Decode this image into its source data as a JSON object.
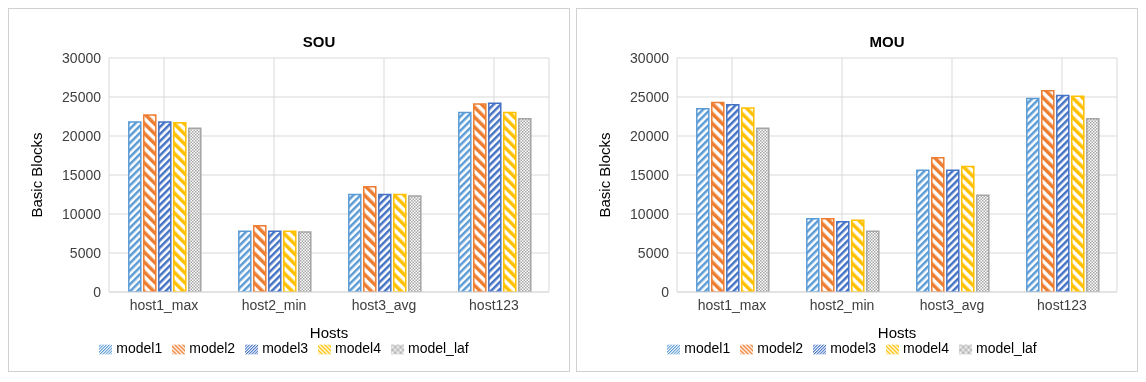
{
  "chart_data": [
    {
      "type": "bar",
      "title": "SOU",
      "xlabel": "Hosts",
      "ylabel": "Basic Blocks",
      "categories": [
        "host1_max",
        "host2_min",
        "host3_avg",
        "host123"
      ],
      "series": [
        {
          "name": "model1",
          "color": "#5b9bd5",
          "values": [
            21800,
            7800,
            12500,
            23000
          ]
        },
        {
          "name": "model2",
          "color": "#ed7d31",
          "values": [
            22700,
            8500,
            13500,
            24100
          ]
        },
        {
          "name": "model3",
          "color": "#4472c4",
          "values": [
            21800,
            7800,
            12500,
            24200
          ]
        },
        {
          "name": "model4",
          "color": "#ffc000",
          "values": [
            21700,
            7800,
            12500,
            23000
          ]
        },
        {
          "name": "model_laf",
          "color": "#a5a5a5",
          "values": [
            21000,
            7700,
            12300,
            22200
          ]
        }
      ],
      "ylim": [
        0,
        30000
      ],
      "yticks": [
        0,
        5000,
        10000,
        15000,
        20000,
        25000,
        30000
      ],
      "grid": true,
      "legend": "bottom"
    },
    {
      "type": "bar",
      "title": "MOU",
      "xlabel": "Hosts",
      "ylabel": "Basic Blocks",
      "categories": [
        "host1_max",
        "host2_min",
        "host3_avg",
        "host123"
      ],
      "series": [
        {
          "name": "model1",
          "color": "#5b9bd5",
          "values": [
            23500,
            9400,
            15600,
            24800
          ]
        },
        {
          "name": "model2",
          "color": "#ed7d31",
          "values": [
            24300,
            9400,
            17200,
            25800
          ]
        },
        {
          "name": "model3",
          "color": "#4472c4",
          "values": [
            24000,
            9000,
            15600,
            25200
          ]
        },
        {
          "name": "model4",
          "color": "#ffc000",
          "values": [
            23600,
            9200,
            16100,
            25100
          ]
        },
        {
          "name": "model_laf",
          "color": "#a5a5a5",
          "values": [
            21000,
            7800,
            12400,
            22200
          ]
        }
      ],
      "ylim": [
        0,
        30000
      ],
      "yticks": [
        0,
        5000,
        10000,
        15000,
        20000,
        25000,
        30000
      ],
      "grid": true,
      "legend": "bottom"
    }
  ]
}
